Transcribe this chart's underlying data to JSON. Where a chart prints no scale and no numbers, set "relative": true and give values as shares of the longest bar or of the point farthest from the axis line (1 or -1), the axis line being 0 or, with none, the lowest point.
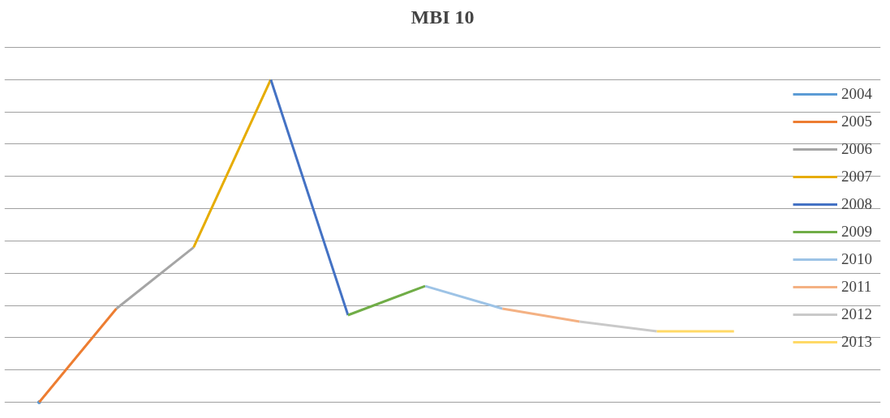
{
  "chart_data": {
    "type": "line",
    "title": "MBI 10",
    "relative": true,
    "grid": "y",
    "legend": "right",
    "line_style": "solid",
    "categories": [
      null,
      null,
      null,
      null,
      null,
      null,
      null,
      null,
      null,
      null
    ],
    "series": [
      {
        "name": "2004",
        "color": "#5b9bd5",
        "marker": "circle",
        "values": [
          0,
          null,
          null,
          null,
          null,
          null,
          null,
          null,
          null,
          null
        ]
      },
      {
        "name": "2005",
        "color": "#ed7d31",
        "values": [
          0,
          0.29,
          null,
          null,
          null,
          null,
          null,
          null,
          null,
          null
        ]
      },
      {
        "name": "2006",
        "color": "#a5a5a5",
        "values": [
          null,
          0.29,
          0.48,
          null,
          null,
          null,
          null,
          null,
          null,
          null
        ]
      },
      {
        "name": "2007",
        "color": "#e6ac00",
        "values": [
          null,
          null,
          0.48,
          1,
          null,
          null,
          null,
          null,
          null,
          null
        ]
      },
      {
        "name": "2008",
        "color": "#4472c4",
        "values": [
          null,
          null,
          null,
          1,
          0.27,
          null,
          null,
          null,
          null,
          null
        ]
      },
      {
        "name": "2009",
        "color": "#70ad47",
        "values": [
          null,
          null,
          null,
          null,
          0.27,
          0.36,
          null,
          null,
          null,
          null
        ]
      },
      {
        "name": "2010",
        "color": "#9dc3e6",
        "values": [
          null,
          null,
          null,
          null,
          null,
          0.36,
          0.29,
          null,
          null,
          null
        ]
      },
      {
        "name": "2011",
        "color": "#f4b183",
        "values": [
          null,
          null,
          null,
          null,
          null,
          null,
          0.29,
          0.25,
          null,
          null
        ]
      },
      {
        "name": "2012",
        "color": "#c9c9c9",
        "values": [
          null,
          null,
          null,
          null,
          null,
          null,
          null,
          0.25,
          0.22,
          null
        ]
      },
      {
        "name": "2013",
        "color": "#ffd966",
        "values": [
          null,
          null,
          null,
          null,
          null,
          null,
          null,
          null,
          0.22,
          0.22
        ]
      }
    ]
  }
}
